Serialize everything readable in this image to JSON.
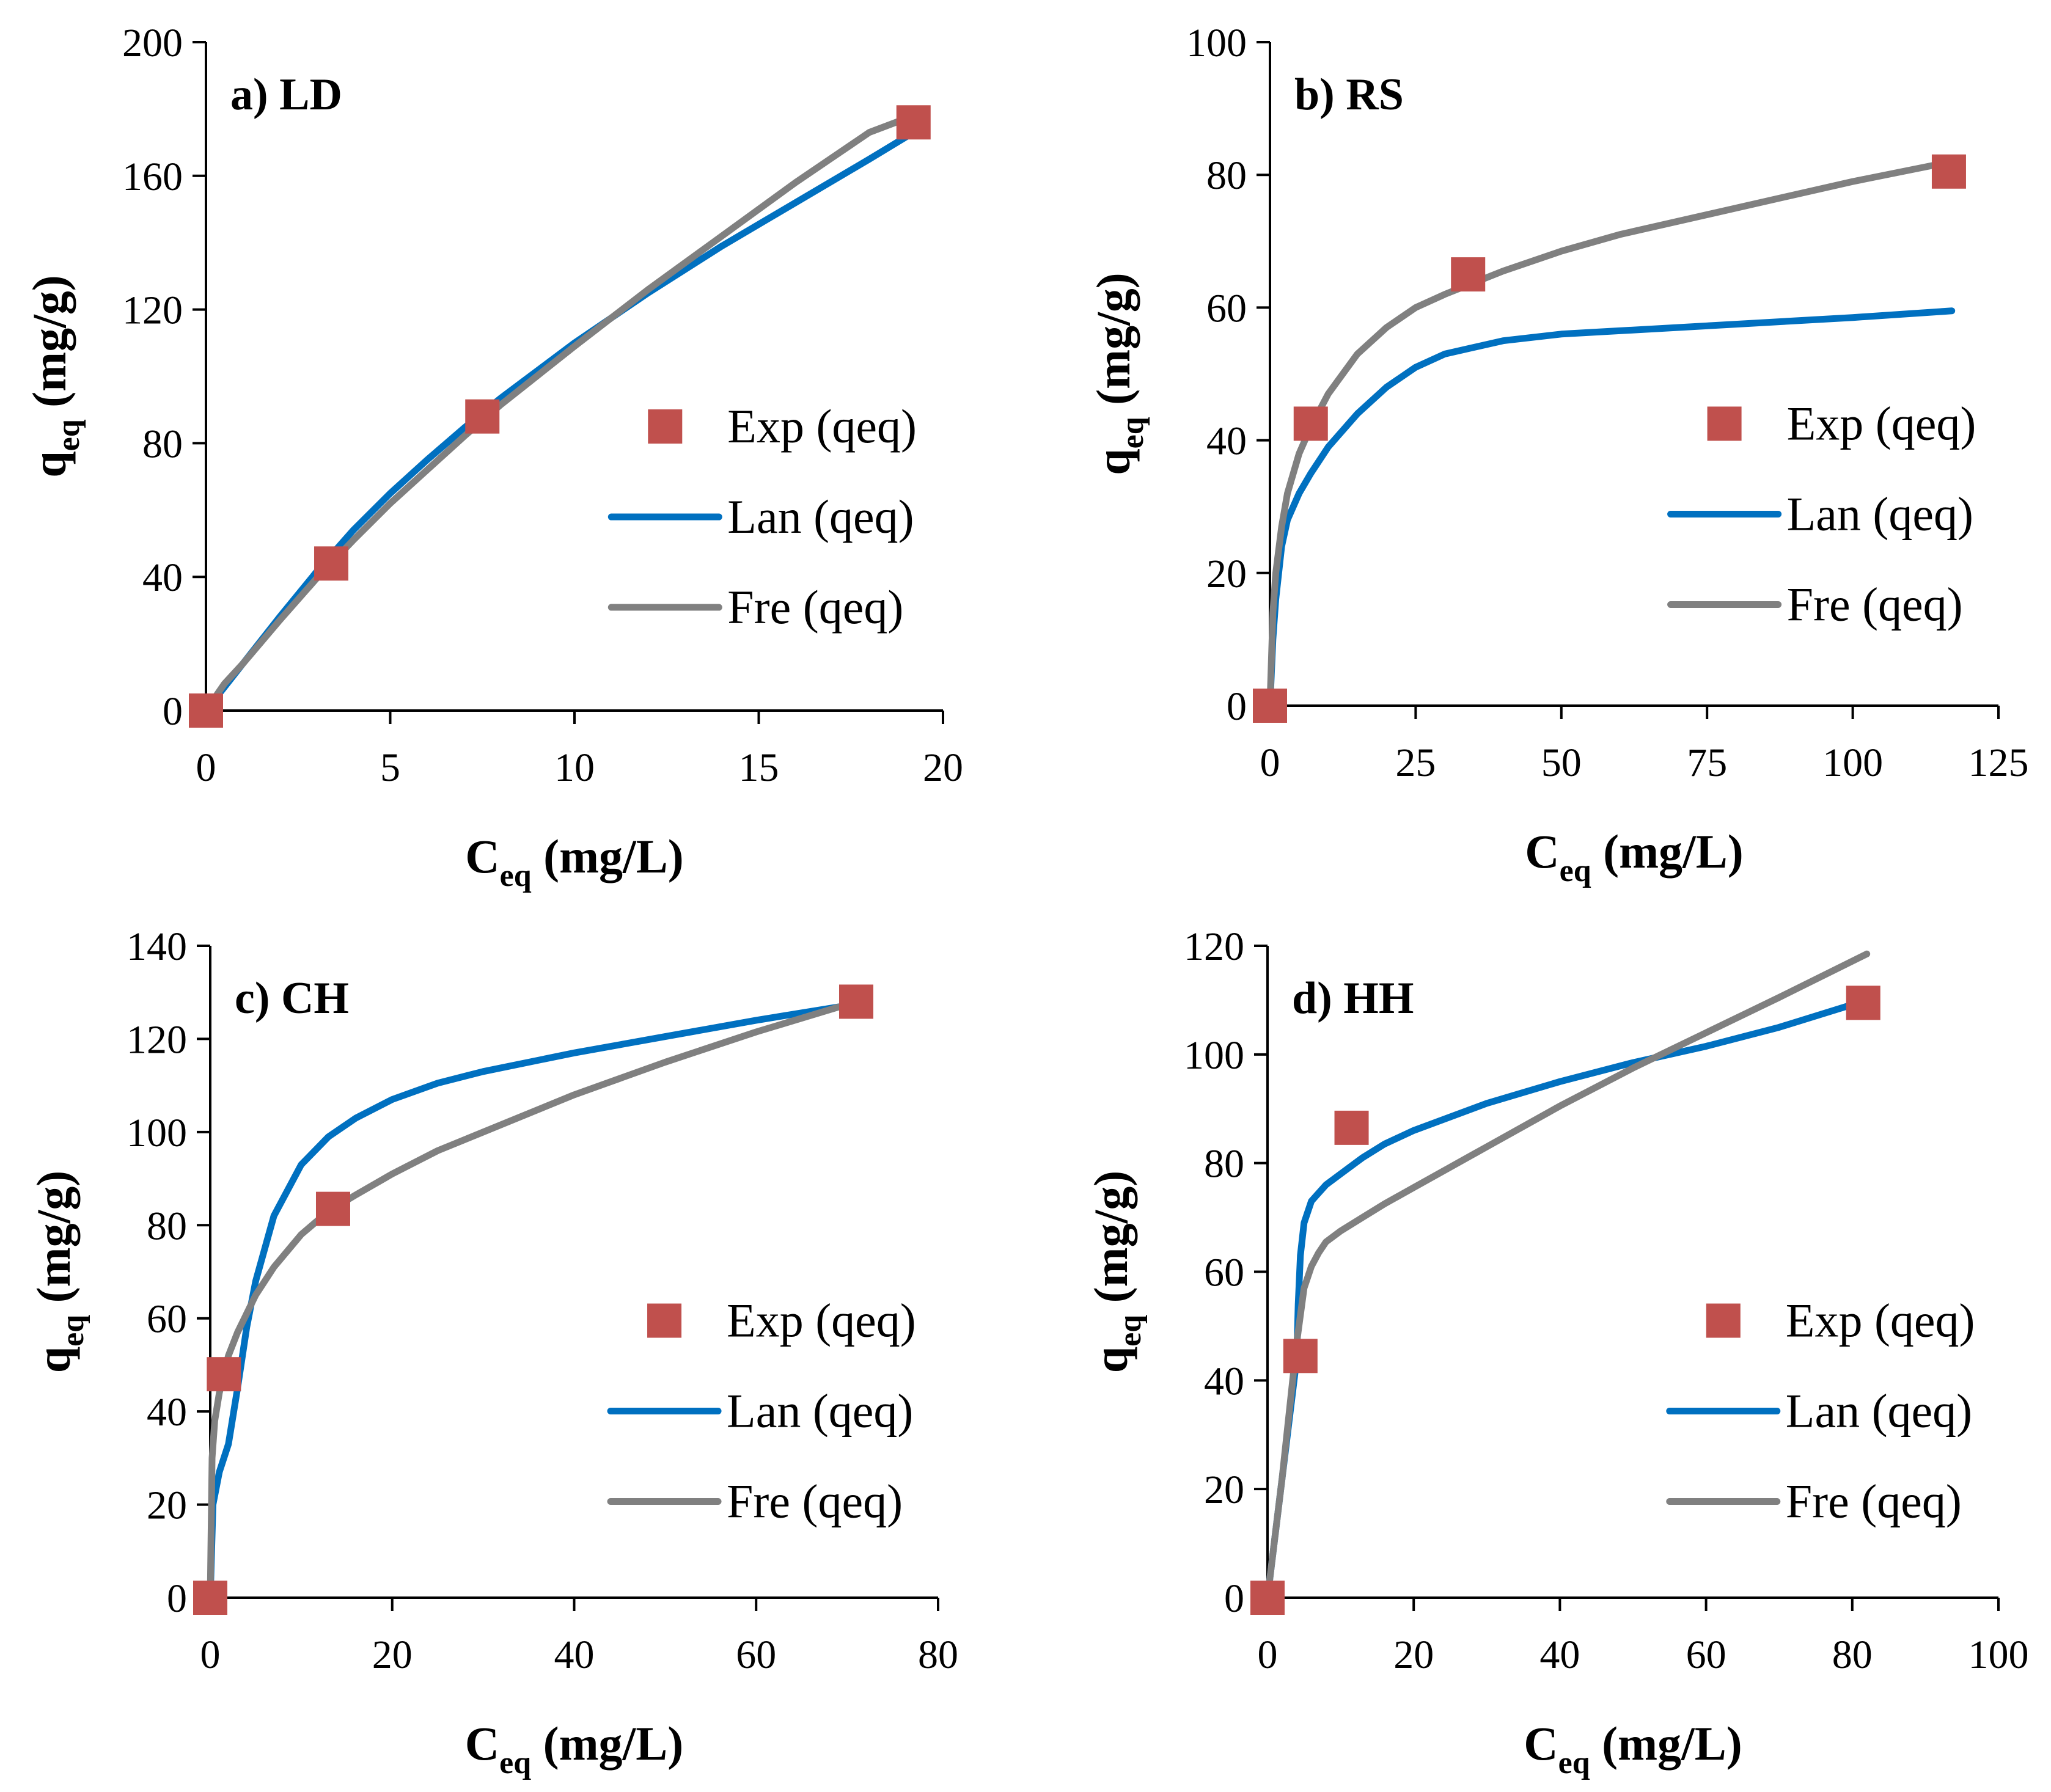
{
  "colors": {
    "exp": "#C0504D",
    "lan": "#0070C0",
    "fre": "#808080",
    "axis": "#000000"
  },
  "chart_data": [
    {
      "type": "scatter",
      "panel": "a) LD",
      "xlabel": {
        "main": "C",
        "sub": "eq",
        "unit": " (mg/L)"
      },
      "ylabel": {
        "main": "q",
        "sub": "eq",
        "unit": " (mg/g)"
      },
      "xlim": [
        0,
        20
      ],
      "ylim": [
        0,
        200
      ],
      "xticks": [
        "0",
        "5",
        "10",
        "15",
        "20"
      ],
      "yticks": [
        "0",
        "40",
        "80",
        "120",
        "160",
        "200"
      ],
      "legend_position": "right-middle",
      "series": [
        {
          "name": "Exp (qeq)",
          "kind": "marker",
          "color": "exp",
          "x": [
            0,
            3.4,
            7.5,
            19.2
          ],
          "y": [
            0,
            44,
            88,
            176
          ]
        },
        {
          "name": "Lan (qeq)",
          "kind": "line",
          "color": "lan",
          "x": [
            0,
            1,
            2,
            3,
            4,
            5,
            6,
            7,
            8,
            10,
            12,
            14,
            16,
            18,
            19.2
          ],
          "y": [
            0,
            14,
            28,
            41.5,
            54,
            65,
            75,
            84.5,
            93.5,
            110,
            125,
            139,
            152,
            165,
            173
          ]
        },
        {
          "name": "Fre (qeq)",
          "kind": "line",
          "color": "fre",
          "x": [
            0,
            0.5,
            1,
            2,
            3,
            4,
            5,
            6,
            7,
            8,
            10,
            12,
            14,
            16,
            18,
            19.2
          ],
          "y": [
            0,
            8,
            14,
            27,
            39.5,
            51,
            62,
            72,
            82,
            91.5,
            109,
            126,
            142,
            158,
            173,
            178
          ]
        }
      ]
    },
    {
      "type": "scatter",
      "panel": "b) RS",
      "xlabel": {
        "main": "C",
        "sub": "eq",
        "unit": " (mg/L)"
      },
      "ylabel": {
        "main": "q",
        "sub": "eq",
        "unit": " (mg/g)"
      },
      "xlim": [
        0,
        125
      ],
      "ylim": [
        0,
        100
      ],
      "xticks": [
        "0",
        "25",
        "50",
        "75",
        "100",
        "125"
      ],
      "yticks": [
        "0",
        "20",
        "40",
        "60",
        "80",
        "100"
      ],
      "legend_position": "right-middle",
      "series": [
        {
          "name": "Exp (qeq)",
          "kind": "marker",
          "color": "exp",
          "x": [
            0,
            7,
            34,
            116.5
          ],
          "y": [
            0,
            42.5,
            65,
            80.5
          ]
        },
        {
          "name": "Lan (qeq)",
          "kind": "line",
          "color": "lan",
          "x": [
            0,
            0.5,
            1,
            2,
            3,
            5,
            7,
            10,
            15,
            20,
            25,
            30,
            40,
            50,
            60,
            80,
            100,
            117
          ],
          "y": [
            0,
            10,
            16,
            24,
            28,
            32,
            35,
            39,
            44,
            48,
            51,
            53,
            55,
            56,
            56.5,
            57.5,
            58.5,
            59.5
          ]
        },
        {
          "name": "Fre (qeq)",
          "kind": "line",
          "color": "fre",
          "x": [
            0,
            0.5,
            1,
            2,
            3,
            5,
            7,
            10,
            15,
            20,
            25,
            30,
            40,
            50,
            60,
            80,
            100,
            117
          ],
          "y": [
            0,
            14,
            20,
            27,
            32,
            38,
            42,
            47,
            53,
            57,
            60,
            62,
            65.5,
            68.5,
            71,
            75,
            79,
            82
          ]
        }
      ]
    },
    {
      "type": "scatter",
      "panel": "c) CH",
      "xlabel": {
        "main": "C",
        "sub": "eq",
        "unit": " (mg/L)"
      },
      "ylabel": {
        "main": "q",
        "sub": "eq",
        "unit": " (mg/g)"
      },
      "xlim": [
        0,
        80
      ],
      "ylim": [
        0,
        140
      ],
      "xticks": [
        "0",
        "20",
        "40",
        "60",
        "80"
      ],
      "yticks": [
        "0",
        "20",
        "40",
        "60",
        "80",
        "100",
        "120",
        "140"
      ],
      "legend_position": "right-middle",
      "series": [
        {
          "name": "Exp (qeq)",
          "kind": "marker",
          "color": "exp",
          "x": [
            0,
            1.5,
            13.5,
            71
          ],
          "y": [
            0,
            48,
            83.5,
            128
          ]
        },
        {
          "name": "Lan (qeq)",
          "kind": "line",
          "color": "lan",
          "x": [
            0,
            0.3,
            1,
            2,
            3,
            4,
            5,
            7,
            10,
            13,
            16,
            20,
            25,
            30,
            40,
            50,
            60,
            71
          ],
          "y": [
            0,
            20,
            27,
            33,
            45,
            58,
            68,
            82,
            93,
            99,
            103,
            107,
            110.5,
            113,
            117,
            120.5,
            124,
            127.5
          ]
        },
        {
          "name": "Fre (qeq)",
          "kind": "line",
          "color": "fre",
          "x": [
            0,
            0.2,
            0.5,
            1,
            2,
            3,
            4,
            5,
            7,
            10,
            13,
            16,
            20,
            25,
            30,
            40,
            50,
            60,
            71
          ],
          "y": [
            0,
            30,
            38,
            44,
            52,
            57,
            61,
            65,
            71,
            78,
            83,
            86.5,
            91,
            96,
            100,
            108,
            115,
            121.5,
            128
          ]
        }
      ]
    },
    {
      "type": "scatter",
      "panel": "d) HH",
      "xlabel": {
        "main": "C",
        "sub": "eq",
        "unit": " (mg/L)"
      },
      "ylabel": {
        "main": "q",
        "sub": "eq",
        "unit": " (mg/g)"
      },
      "xlim": [
        0,
        100
      ],
      "ylim": [
        0,
        120
      ],
      "xticks": [
        "0",
        "20",
        "40",
        "60",
        "80",
        "100"
      ],
      "yticks": [
        "0",
        "20",
        "40",
        "60",
        "80",
        "100",
        "120"
      ],
      "legend_position": "right-middle",
      "series": [
        {
          "name": "Exp (qeq)",
          "kind": "marker",
          "color": "exp",
          "x": [
            0,
            4.5,
            11.5,
            81.5
          ],
          "y": [
            0,
            44.5,
            86.5,
            109.5
          ]
        },
        {
          "name": "Lan (qeq)",
          "kind": "line",
          "color": "lan",
          "x": [
            0,
            2,
            4,
            4.2,
            4.5,
            5,
            6,
            8,
            10,
            13,
            16,
            20,
            30,
            40,
            50,
            60,
            70,
            82
          ],
          "y": [
            0,
            22,
            44,
            54,
            63,
            69,
            73,
            76,
            78,
            81,
            83.5,
            86,
            91,
            95,
            98.5,
            101.5,
            105,
            110
          ]
        },
        {
          "name": "Fre (qeq)",
          "kind": "line",
          "color": "fre",
          "x": [
            0,
            2,
            4,
            5,
            6,
            7,
            8,
            10,
            13,
            16,
            20,
            30,
            40,
            50,
            60,
            70,
            82
          ],
          "y": [
            0,
            22,
            47,
            57,
            61,
            63.5,
            65.5,
            67.5,
            70,
            72.5,
            75.5,
            83,
            90.5,
            97.5,
            104,
            110.5,
            118.5
          ]
        }
      ]
    }
  ]
}
